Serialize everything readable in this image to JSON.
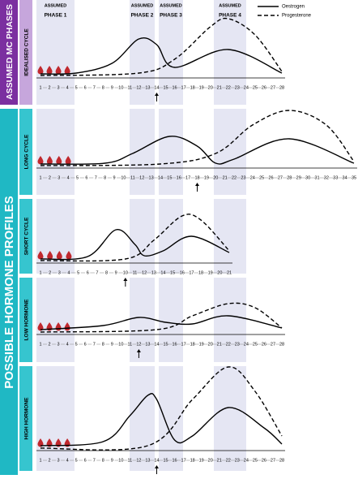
{
  "side_labels": [
    "ASSUMED MC PHASES",
    "POSSIBLE HORMONE PROFILES"
  ],
  "phases": [
    {
      "top": "ASSUMED",
      "bottom": "PHASE 1"
    },
    {
      "top": "ASSUMED",
      "bottom": "PHASE 2"
    },
    {
      "top": "ASSUMED",
      "bottom": "PHASE 3"
    },
    {
      "top": "ASSUMED",
      "bottom": "PHASE 4"
    }
  ],
  "legend": [
    "Oestrogen",
    "Progesterone"
  ],
  "panels": [
    {
      "label": "IDEALISED CYCLE",
      "days": [
        1,
        2,
        3,
        4,
        5,
        6,
        7,
        8,
        9,
        10,
        11,
        12,
        13,
        14,
        15,
        16,
        17,
        18,
        19,
        20,
        21,
        22,
        23,
        24,
        25,
        26,
        27,
        28
      ]
    },
    {
      "label": "LONG CYCLE",
      "days": [
        1,
        2,
        3,
        4,
        5,
        6,
        7,
        8,
        9,
        10,
        11,
        12,
        13,
        14,
        15,
        16,
        17,
        18,
        19,
        20,
        21,
        22,
        23,
        24,
        25,
        26,
        27,
        28,
        29,
        30,
        31,
        32,
        33,
        34,
        35
      ]
    },
    {
      "label": "SHORT CYCLE",
      "days": [
        1,
        2,
        3,
        4,
        5,
        6,
        7,
        8,
        9,
        10,
        11,
        12,
        13,
        14,
        15,
        16,
        17,
        18,
        19,
        20,
        21
      ]
    },
    {
      "label": "LOW HORMONE",
      "days": [
        1,
        2,
        3,
        4,
        5,
        6,
        7,
        8,
        9,
        10,
        11,
        12,
        13,
        14,
        15,
        16,
        17,
        18,
        19,
        20,
        21,
        22,
        23,
        24,
        25,
        26,
        27,
        28
      ]
    },
    {
      "label": "HIGH HORMONE",
      "days": [
        1,
        2,
        3,
        4,
        5,
        6,
        7,
        8,
        9,
        10,
        11,
        12,
        13,
        14,
        15,
        16,
        17,
        18,
        19,
        20,
        21,
        22,
        23,
        24,
        25,
        26,
        27,
        28
      ]
    }
  ]
}
